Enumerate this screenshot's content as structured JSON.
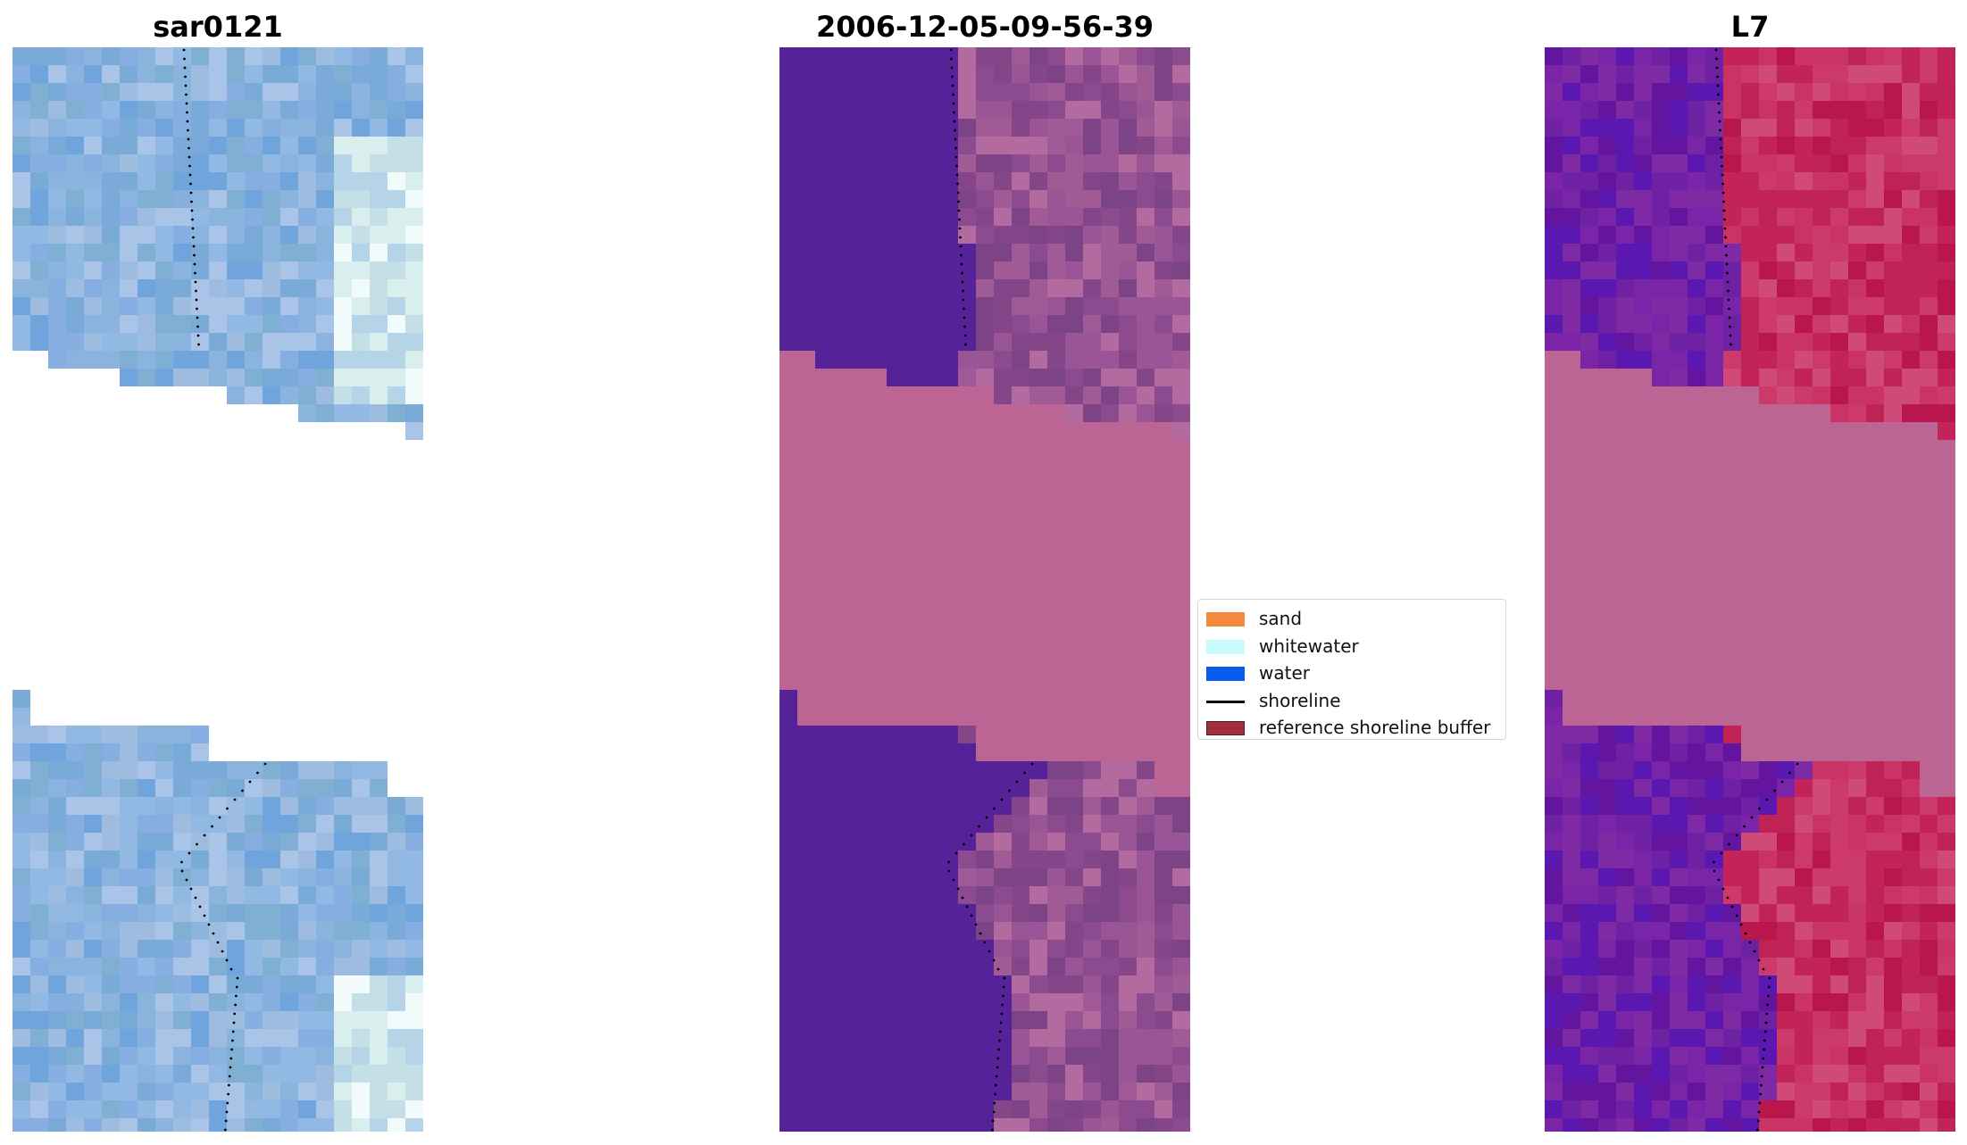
{
  "panels": [
    {
      "id": "rgb",
      "title": "sar0121",
      "palette": [
        "#7aaad8",
        "#8ab4dd",
        "#6fa4dc",
        "#9ebbe0",
        "#7fb0d4",
        "#92b9e4",
        "#a9c4e6",
        "#87aee0"
      ],
      "highlight": [
        "#d8efee",
        "#f2fbfb",
        "#c4e0e6",
        "#b5d4e8"
      ]
    },
    {
      "id": "classified",
      "title": "2006-12-05-09-56-39",
      "water_color": "#55229a",
      "land_palette": [
        "#8c4a8f",
        "#9a5596",
        "#844589",
        "#a05b97",
        "#b26a9f",
        "#7c4487"
      ],
      "nodata_color": "#bc6595"
    },
    {
      "id": "landsat",
      "title": "L7",
      "water_palette": [
        "#6e22a3",
        "#7a24a8",
        "#64159f",
        "#7f2aa5",
        "#5a18b0"
      ],
      "land_palette": [
        "#c2245a",
        "#c93465",
        "#b8164d",
        "#cc3a6b",
        "#d04a78",
        "#bf2356"
      ],
      "nodata_color": "#bc6595"
    }
  ],
  "legend": {
    "items": [
      {
        "label": "sand",
        "color": "#f5893b",
        "kind": "patch"
      },
      {
        "label": "whitewater",
        "color": "#c8fbfb",
        "kind": "patch"
      },
      {
        "label": "water",
        "color": "#0a5af0",
        "kind": "patch"
      },
      {
        "label": "shoreline",
        "color": "#000000",
        "kind": "line"
      },
      {
        "label": "reference shoreline buffer",
        "color": "#a12f3c",
        "kind": "patch"
      }
    ]
  }
}
